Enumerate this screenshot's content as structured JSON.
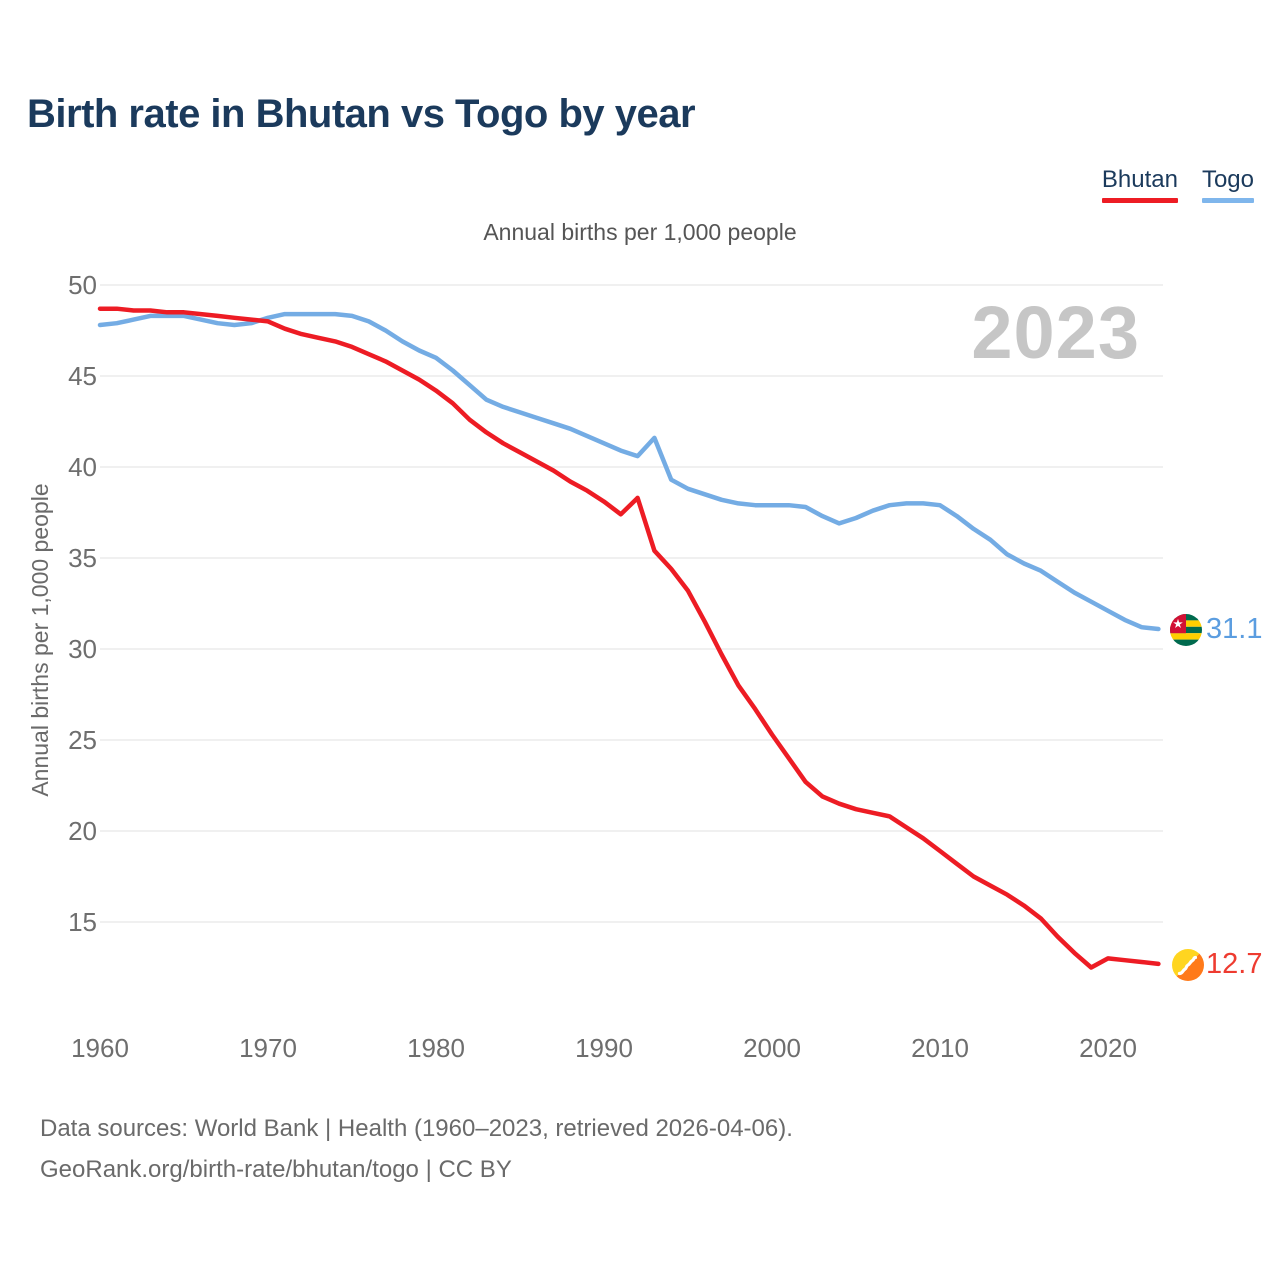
{
  "header": {
    "title": "Birth rate in Bhutan vs Togo by year"
  },
  "legend": {
    "items": [
      {
        "label": "Bhutan",
        "color": "#ed1c24"
      },
      {
        "label": "Togo",
        "color": "#7fb6ec"
      }
    ]
  },
  "chart_data": {
    "type": "line",
    "title": "Annual births per 1,000 people",
    "ylabel": "Annual births per 1,000 people",
    "watermark": "2023",
    "grid": true,
    "legend_position": "top-right",
    "xlim": [
      1960,
      2023
    ],
    "ylim": [
      11.5,
      50.8
    ],
    "yticks": [
      50,
      45,
      40,
      35,
      30,
      25,
      20,
      15
    ],
    "xticks": [
      1960,
      1970,
      1980,
      1990,
      2000,
      2010,
      2020
    ],
    "x": [
      1960,
      1961,
      1962,
      1963,
      1964,
      1965,
      1966,
      1967,
      1968,
      1969,
      1970,
      1971,
      1972,
      1973,
      1974,
      1975,
      1976,
      1977,
      1978,
      1979,
      1980,
      1981,
      1982,
      1983,
      1984,
      1985,
      1986,
      1987,
      1988,
      1989,
      1990,
      1991,
      1992,
      1993,
      1994,
      1995,
      1996,
      1997,
      1998,
      1999,
      2000,
      2001,
      2002,
      2003,
      2004,
      2005,
      2006,
      2007,
      2008,
      2009,
      2010,
      2011,
      2012,
      2013,
      2014,
      2015,
      2016,
      2017,
      2018,
      2019,
      2020,
      2021,
      2022,
      2023
    ],
    "series": [
      {
        "name": "Togo",
        "color": "#74ace4",
        "values": [
          47.8,
          47.9,
          48.1,
          48.3,
          48.3,
          48.3,
          48.1,
          47.9,
          47.8,
          47.9,
          48.2,
          48.4,
          48.4,
          48.4,
          48.4,
          48.3,
          48.0,
          47.5,
          46.9,
          46.4,
          46.0,
          45.3,
          44.5,
          43.7,
          43.3,
          43.0,
          42.7,
          42.4,
          42.1,
          41.7,
          41.3,
          40.9,
          40.6,
          41.6,
          39.3,
          38.8,
          38.5,
          38.2,
          38.0,
          37.9,
          37.9,
          37.9,
          37.8,
          37.3,
          36.9,
          37.2,
          37.6,
          37.9,
          38.0,
          38.0,
          37.9,
          37.3,
          36.6,
          36.0,
          35.2,
          34.7,
          34.3,
          33.7,
          33.1,
          32.6,
          32.1,
          31.6,
          31.2,
          31.1
        ]
      },
      {
        "name": "Bhutan",
        "color": "#ed1c24",
        "values": [
          48.7,
          48.7,
          48.6,
          48.6,
          48.5,
          48.5,
          48.4,
          48.3,
          48.2,
          48.1,
          48.0,
          47.6,
          47.3,
          47.1,
          46.9,
          46.6,
          46.2,
          45.8,
          45.3,
          44.8,
          44.2,
          43.5,
          42.6,
          41.9,
          41.3,
          40.8,
          40.3,
          39.8,
          39.2,
          38.7,
          38.1,
          37.4,
          38.3,
          35.4,
          34.4,
          33.2,
          31.5,
          29.7,
          28.0,
          26.7,
          25.3,
          24.0,
          22.7,
          21.9,
          21.5,
          21.2,
          21.0,
          20.8,
          20.2,
          19.6,
          18.9,
          18.2,
          17.5,
          17.0,
          16.5,
          15.9,
          15.2,
          14.2,
          13.3,
          12.5,
          13.0,
          12.9,
          12.8,
          12.7
        ]
      }
    ],
    "end_labels": {
      "togo": {
        "value": "31.1",
        "color": "#5b9de0",
        "flag": "togo"
      },
      "bhutan": {
        "value": "12.7",
        "color": "#ee3b30",
        "flag": "bhutan"
      }
    }
  },
  "footer": {
    "line1": "Data sources: World Bank | Health (1960–2023, retrieved 2026-04-06).",
    "line2": "GeoRank.org/birth-rate/bhutan/togo | CC BY"
  }
}
